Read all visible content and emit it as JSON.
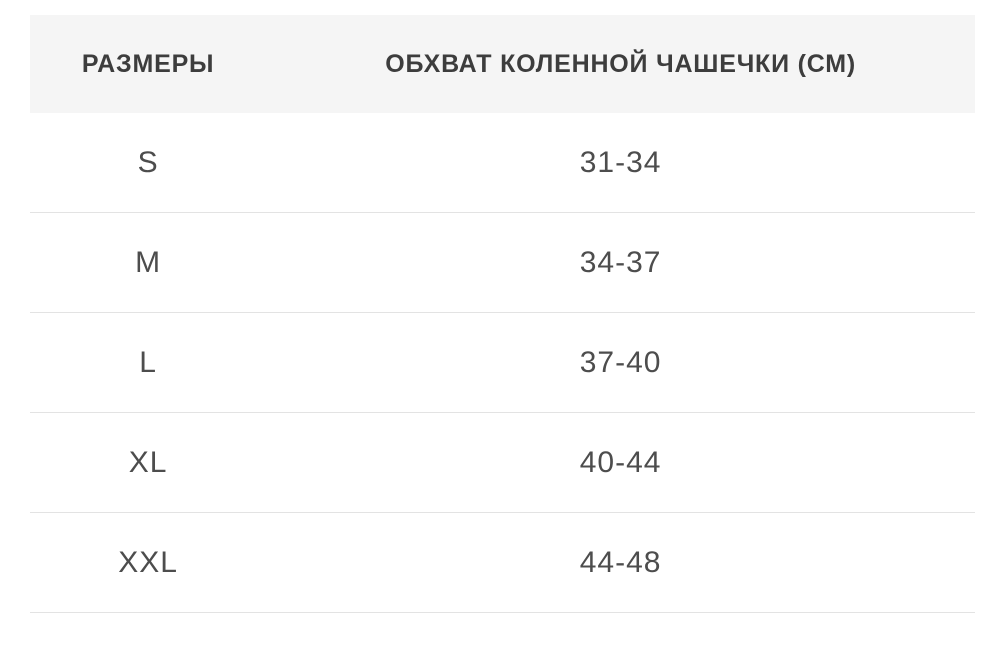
{
  "colors": {
    "page_bg": "#ffffff",
    "header_bg": "#f5f5f5",
    "header_text": "#3d3d3d",
    "row_text": "#4d4d4d",
    "divider": "#e3e3e3"
  },
  "table": {
    "headers": [
      "РАЗМЕРЫ",
      "ОБХВАТ КОЛЕННОЙ ЧАШЕЧКИ (СМ)"
    ],
    "rows": [
      {
        "size": "S",
        "range": "31-34"
      },
      {
        "size": "M",
        "range": "34-37"
      },
      {
        "size": "L",
        "range": "37-40"
      },
      {
        "size": "XL",
        "range": "40-44"
      },
      {
        "size": "XXL",
        "range": "44-48"
      }
    ]
  },
  "chart_data": {
    "type": "table",
    "title": "",
    "columns": [
      "РАЗМЕРЫ",
      "ОБХВАТ КОЛЕННОЙ ЧАШЕЧКИ (СМ)"
    ],
    "rows": [
      [
        "S",
        "31-34"
      ],
      [
        "M",
        "34-37"
      ],
      [
        "L",
        "37-40"
      ],
      [
        "XL",
        "40-44"
      ],
      [
        "XXL",
        "44-48"
      ]
    ],
    "layout": {
      "header_background": "#f5f5f5",
      "grid": "horizontal-rules-only",
      "column_align": "center"
    }
  }
}
